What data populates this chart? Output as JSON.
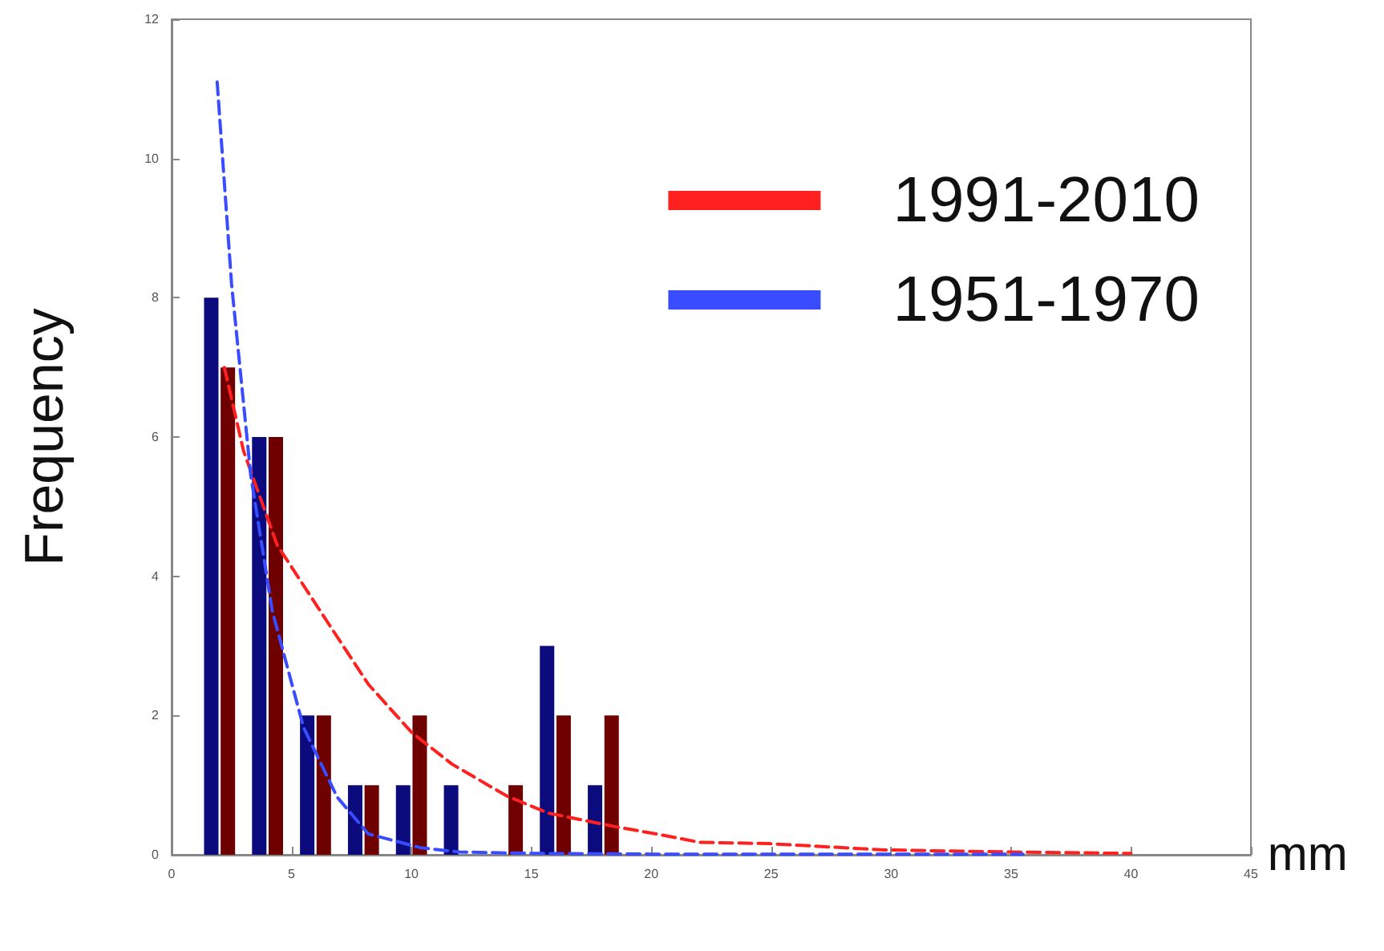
{
  "chart_data": {
    "type": "bar",
    "xlabel": "mm",
    "ylabel": "Frequency",
    "x": [
      2,
      4,
      6,
      8,
      10,
      12,
      14,
      16,
      18
    ],
    "xlim": [
      0,
      45
    ],
    "xticks": [
      0,
      5,
      10,
      15,
      20,
      25,
      30,
      35,
      40,
      45
    ],
    "ylim": [
      0,
      12
    ],
    "yticks": [
      0,
      2,
      4,
      6,
      8,
      10,
      12
    ],
    "grid": false,
    "legend": "top right",
    "marker": "none",
    "series": [
      {
        "color": "#0b0b7e",
        "values": [
          8,
          6,
          2,
          1,
          1,
          1,
          0,
          3,
          1
        ]
      },
      {
        "color": "#6e0000",
        "values": [
          7,
          6,
          2,
          1,
          2,
          0,
          1,
          2,
          2
        ]
      },
      {
        "type": "line",
        "name": "1991-2010",
        "color": "#ff2020",
        "line_style": "dashed",
        "x": [
          2.2,
          3,
          4.4,
          6.2,
          8.2,
          10,
          11.7,
          14,
          15.7,
          18.4,
          20.2,
          22,
          24.9,
          29.7,
          35,
          40
        ],
        "values": [
          7.0,
          5.8,
          4.45,
          3.5,
          2.45,
          1.76,
          1.3,
          0.84,
          0.6,
          0.41,
          0.3,
          0.18,
          0.16,
          0.07,
          0.04,
          0.02
        ]
      },
      {
        "type": "line",
        "name": "1951-1970",
        "color": "#3a4cff",
        "line_style": "dashed",
        "x": [
          1.9,
          2.5,
          3.3,
          4.2,
          5.5,
          6.9,
          8.2,
          10.4,
          12,
          15,
          20,
          25,
          30,
          35.5
        ],
        "values": [
          11.1,
          8.2,
          5.45,
          3.5,
          1.83,
          0.83,
          0.3,
          0.1,
          0.04,
          0.02,
          0.01,
          0.01,
          0.01,
          0.01
        ]
      }
    ]
  }
}
